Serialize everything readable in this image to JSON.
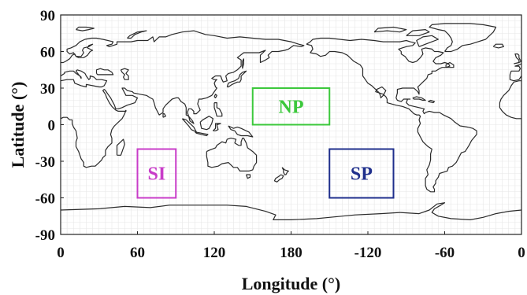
{
  "axes": {
    "xlabel": "Longitude (°)",
    "ylabel": "Latitude (°)",
    "x_ticks": [
      "0",
      "60",
      "120",
      "180",
      "-120",
      "-60",
      "0"
    ],
    "y_ticks": [
      "90",
      "60",
      "30",
      "0",
      "-30",
      "-60",
      "-90"
    ],
    "xlim_deg_east": [
      0,
      360
    ],
    "ylim_deg": [
      -90,
      90
    ],
    "grid": "fine gray grid"
  },
  "map": {
    "projection": "equirectangular, Pacific-centered (0°–360°E)",
    "coastlines": "world continental outlines"
  },
  "regions": [
    {
      "label": "NP",
      "color": "#3cc83c",
      "lon_range_deg_east": [
        150,
        210
      ],
      "lat_range": [
        0,
        30
      ]
    },
    {
      "label": "SI",
      "color": "#c83cc8",
      "lon_range_deg_east": [
        60,
        90
      ],
      "lat_range": [
        -60,
        -20
      ]
    },
    {
      "label": "SP",
      "color": "#1f2f8c",
      "lon_range_deg_east": [
        210,
        260
      ],
      "lat_range": [
        -60,
        -20
      ]
    }
  ]
}
